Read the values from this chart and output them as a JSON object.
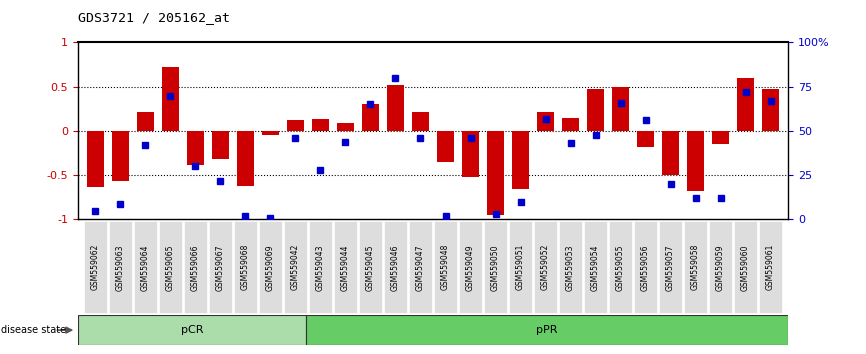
{
  "title": "GDS3721 / 205162_at",
  "samples": [
    "GSM559062",
    "GSM559063",
    "GSM559064",
    "GSM559065",
    "GSM559066",
    "GSM559067",
    "GSM559068",
    "GSM559069",
    "GSM559042",
    "GSM559043",
    "GSM559044",
    "GSM559045",
    "GSM559046",
    "GSM559047",
    "GSM559048",
    "GSM559049",
    "GSM559050",
    "GSM559051",
    "GSM559052",
    "GSM559053",
    "GSM559054",
    "GSM559055",
    "GSM559056",
    "GSM559057",
    "GSM559058",
    "GSM559059",
    "GSM559060",
    "GSM559061"
  ],
  "bar_values": [
    -0.63,
    -0.57,
    0.22,
    0.72,
    -0.38,
    -0.32,
    -0.62,
    -0.05,
    0.12,
    0.13,
    0.09,
    0.3,
    0.52,
    0.22,
    -0.35,
    -0.52,
    -0.95,
    -0.65,
    0.22,
    0.15,
    0.47,
    0.5,
    -0.18,
    -0.5,
    -0.68,
    -0.15,
    0.6,
    0.48
  ],
  "percentile_values": [
    5,
    9,
    42,
    70,
    30,
    22,
    2,
    1,
    46,
    28,
    44,
    65,
    80,
    46,
    2,
    46,
    3,
    10,
    57,
    43,
    48,
    66,
    56,
    20,
    12,
    12,
    72,
    67
  ],
  "pCR_count": 9,
  "pPR_count": 19,
  "bar_color": "#cc0000",
  "dot_color": "#0000cc",
  "ylim": [
    -1,
    1
  ],
  "yticks_left": [
    -1,
    -0.5,
    0,
    0.5,
    1
  ],
  "yticks_right": [
    0,
    25,
    50,
    75,
    100
  ],
  "ytick_labels_right": [
    "0",
    "25",
    "50",
    "75",
    "100%"
  ],
  "pCR_color": "#aaddaa",
  "pPR_color": "#66cc66",
  "label_color_bar": "#cc0000",
  "label_color_dot": "#0000cc",
  "fig_width": 8.66,
  "fig_height": 3.54,
  "dpi": 100
}
